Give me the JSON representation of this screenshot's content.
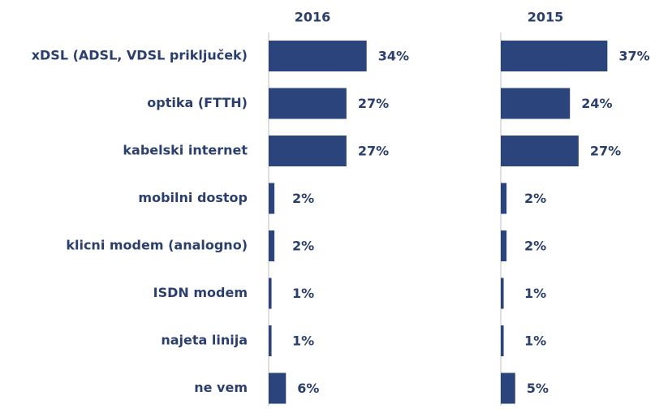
{
  "chart_data": [
    {
      "type": "bar",
      "orientation": "horizontal",
      "title": "2016",
      "categories": [
        "xDSL (ADSL, VDSL priključek)",
        "optika (FTTH)",
        "kabelski internet",
        "mobilni dostop",
        "klicni modem (analogno)",
        "ISDN modem",
        "najeta linija",
        "ne vem"
      ],
      "values": [
        34,
        27,
        27,
        2,
        2,
        1,
        1,
        6
      ],
      "value_labels": [
        "34%",
        "27%",
        "27%",
        "2%",
        "2%",
        "1%",
        "1%",
        "6%"
      ],
      "color": "#2b457c"
    },
    {
      "type": "bar",
      "orientation": "horizontal",
      "title": "2015",
      "values": [
        37,
        24,
        27,
        2,
        2,
        1,
        1,
        5
      ],
      "value_labels": [
        "37%",
        "24%",
        "27%",
        "2%",
        "2%",
        "1%",
        "1%",
        "5%"
      ],
      "color": "#2b457c"
    }
  ]
}
